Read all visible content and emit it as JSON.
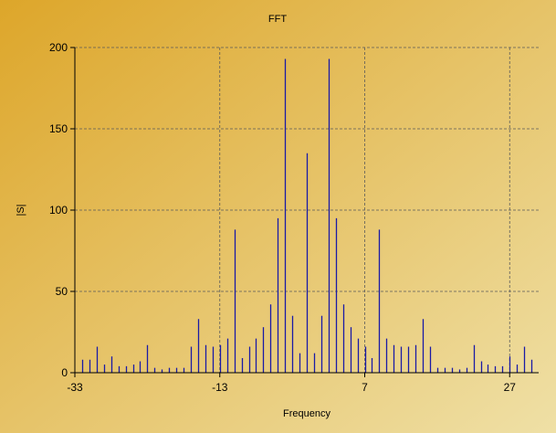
{
  "chart_data": {
    "type": "bar",
    "title": "FFT",
    "xlabel": "Frequency",
    "ylabel": "|S|",
    "xlim": [
      -33,
      31
    ],
    "ylim": [
      0,
      200
    ],
    "xticks": [
      -33,
      -13,
      7,
      27
    ],
    "yticks": [
      0,
      50,
      100,
      150,
      200
    ],
    "grid": true,
    "bar_color": "#1a1aa6",
    "x": [
      -32,
      -31,
      -30,
      -29,
      -28,
      -27,
      -26,
      -25,
      -24,
      -23,
      -22,
      -21,
      -20,
      -19,
      -18,
      -17,
      -16,
      -15,
      -14,
      -13,
      -12,
      -11,
      -10,
      -9,
      -8,
      -7,
      -6,
      -5,
      -4,
      -3,
      -2,
      -1,
      0,
      1,
      2,
      3,
      4,
      5,
      6,
      7,
      8,
      9,
      10,
      11,
      12,
      13,
      14,
      15,
      16,
      17,
      18,
      19,
      20,
      21,
      22,
      23,
      24,
      25,
      26,
      27,
      28,
      29,
      30
    ],
    "values": [
      8,
      8,
      16,
      5,
      10,
      4,
      4,
      5,
      7,
      17,
      3,
      2,
      3,
      3,
      3,
      16,
      33,
      17,
      16,
      17,
      21,
      88,
      9,
      16,
      21,
      28,
      42,
      95,
      193,
      35,
      12,
      135,
      12,
      35,
      193,
      95,
      42,
      28,
      21,
      16,
      9,
      88,
      21,
      17,
      16,
      16,
      17,
      33,
      16,
      3,
      3,
      3,
      2,
      3,
      17,
      7,
      5,
      4,
      4,
      10,
      5,
      16,
      8
    ]
  },
  "colors": {
    "background_start": "#dda62a",
    "background_end": "#efe0a6",
    "grid": "#5a5a5a",
    "axis": "#000000"
  }
}
